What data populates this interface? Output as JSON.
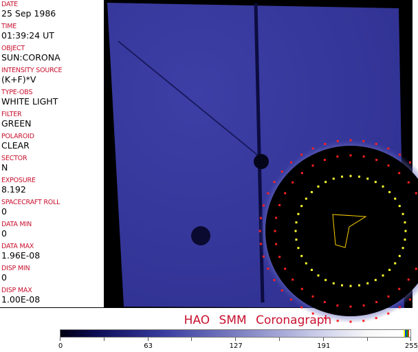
{
  "fields": [
    {
      "label": "DATE",
      "value": "25 Sep 1986"
    },
    {
      "label": "TIME",
      "value": "01:39:24 UT"
    },
    {
      "label": "OBJECT",
      "value": "SUN:CORONA"
    },
    {
      "label": "INTENSITY SOURCE",
      "value": "(K+F)*V"
    },
    {
      "label": "TYPE-OBS",
      "value": "WHITE LIGHT"
    },
    {
      "label": "FILTER",
      "value": "GREEN"
    },
    {
      "label": "POLAROID",
      "value": "CLEAR"
    },
    {
      "label": "SECTOR",
      "value": "N"
    },
    {
      "label": "EXPOSURE",
      "value": "8.192"
    },
    {
      "label": "SPACECRAFT ROLL",
      "value": "0"
    },
    {
      "label": "DATA MIN",
      "value": "0"
    },
    {
      "label": "DATA MAX",
      "value": "1.96E-08"
    },
    {
      "label": "DISP MIN",
      "value": "0"
    },
    {
      "label": "DISP MAX",
      "value": "1.00E-08"
    }
  ],
  "title": "HAO  SMM Coronagraph",
  "colorbar": {
    "ticks": [
      "0",
      "63",
      "127",
      "191",
      "255"
    ],
    "min": 0,
    "max": 255
  },
  "colors": {
    "label": "#c8102e",
    "image_blue": "#3a3c9a",
    "occulter": "#000000"
  }
}
